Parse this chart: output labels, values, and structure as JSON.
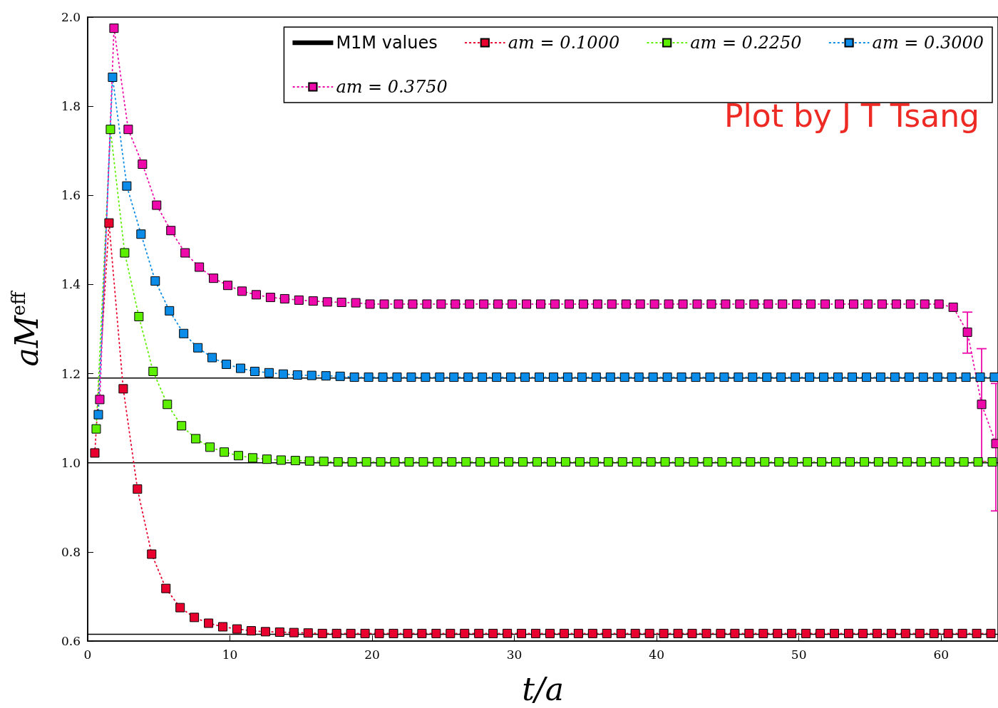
{
  "chart_data": {
    "type": "line",
    "xlabel": "t/a",
    "ylabel": "aM$^{eff}$",
    "xlim": [
      0,
      64
    ],
    "xticks": [
      0,
      10,
      20,
      30,
      40,
      50,
      60
    ],
    "ylim": [
      0.6,
      2.0
    ],
    "yticks": [
      {
        "value": 0.6,
        "label": "0.6"
      },
      {
        "value": 0.8,
        "label": "0.8"
      },
      {
        "value": 1.0,
        "label": "1.0"
      },
      {
        "value": 1.2,
        "label": "1.2"
      },
      {
        "value": 1.4,
        "label": "1.4"
      },
      {
        "value": 1.6,
        "label": "1.6"
      },
      {
        "value": 1.8,
        "label": "1.8"
      },
      {
        "value": 2.0,
        "label": "2.0"
      }
    ],
    "grid": false,
    "legend": "top right",
    "marker": "square",
    "line_style": "dotted",
    "annotations": [
      "Plot by J T Tsang"
    ],
    "series": [
      {
        "name": "M1M values",
        "color": "#000000",
        "marker": "none",
        "line_style": "solid",
        "x": [
          0,
          64
        ],
        "values": [
          0.615,
          0.615
        ]
      },
      {
        "color": "#000000",
        "marker": "none",
        "line_style": "solid",
        "x": [
          0,
          64
        ],
        "values": [
          1.0,
          1.0
        ]
      },
      {
        "color": "#000000",
        "marker": "none",
        "line_style": "solid",
        "x": [
          0,
          64
        ],
        "values": [
          1.19,
          1.19
        ]
      },
      {
        "name": "am = 0.1000",
        "color": "#e8002e",
        "x": [
          0.5,
          1.5,
          2.5,
          3.5,
          4.5,
          5.5,
          6.5,
          7.5,
          8.5,
          9.5,
          10.5,
          11.5,
          12.5,
          13.5,
          14.5,
          15.5,
          16.5,
          17.5,
          18.5,
          19.5,
          20.5,
          21.5,
          22.5,
          23.5,
          24.5,
          25.5,
          26.5,
          27.5,
          28.5,
          29.5,
          30.5,
          31.5,
          32.5,
          33.5,
          34.5,
          35.5,
          36.5,
          37.5,
          38.5,
          39.5,
          40.5,
          41.5,
          42.5,
          43.5,
          44.5,
          45.5,
          46.5,
          47.5,
          48.5,
          49.5,
          50.5,
          51.5,
          52.5,
          53.5,
          54.5,
          55.5,
          56.5,
          57.5,
          58.5,
          59.5,
          60.5,
          61.5,
          62.5,
          63.5
        ],
        "values": [
          1.022,
          1.538,
          1.166,
          0.941,
          0.795,
          0.718,
          0.675,
          0.653,
          0.64,
          0.632,
          0.627,
          0.623,
          0.621,
          0.62,
          0.619,
          0.618,
          0.617,
          0.617,
          0.617,
          0.617,
          0.617,
          0.617,
          0.617,
          0.617,
          0.617,
          0.617,
          0.617,
          0.617,
          0.617,
          0.617,
          0.617,
          0.617,
          0.617,
          0.617,
          0.617,
          0.617,
          0.617,
          0.617,
          0.617,
          0.617,
          0.617,
          0.617,
          0.617,
          0.617,
          0.617,
          0.617,
          0.617,
          0.617,
          0.617,
          0.617,
          0.617,
          0.617,
          0.617,
          0.617,
          0.617,
          0.617,
          0.617,
          0.617,
          0.617,
          0.617,
          0.617,
          0.617,
          0.617,
          0.617
        ]
      },
      {
        "name": "am = 0.2250",
        "color": "#5cf000",
        "x": [
          0.6,
          1.6,
          2.6,
          3.6,
          4.6,
          5.6,
          6.6,
          7.6,
          8.6,
          9.6,
          10.6,
          11.6,
          12.6,
          13.6,
          14.6,
          15.6,
          16.6,
          17.6,
          18.6,
          19.6,
          20.6,
          21.6,
          22.6,
          23.6,
          24.6,
          25.6,
          26.6,
          27.6,
          28.6,
          29.6,
          30.6,
          31.6,
          32.6,
          33.6,
          34.6,
          35.6,
          36.6,
          37.6,
          38.6,
          39.6,
          40.6,
          41.6,
          42.6,
          43.6,
          44.6,
          45.6,
          46.6,
          47.6,
          48.6,
          49.6,
          50.6,
          51.6,
          52.6,
          53.6,
          54.6,
          55.6,
          56.6,
          57.6,
          58.6,
          59.6,
          60.6,
          61.6,
          62.6,
          63.6
        ],
        "values": [
          1.076,
          1.748,
          1.471,
          1.328,
          1.205,
          1.131,
          1.083,
          1.054,
          1.035,
          1.024,
          1.016,
          1.011,
          1.008,
          1.006,
          1.005,
          1.004,
          1.003,
          1.002,
          1.002,
          1.002,
          1.002,
          1.002,
          1.002,
          1.002,
          1.002,
          1.002,
          1.002,
          1.002,
          1.002,
          1.002,
          1.002,
          1.002,
          1.002,
          1.002,
          1.002,
          1.002,
          1.002,
          1.002,
          1.002,
          1.002,
          1.002,
          1.002,
          1.002,
          1.002,
          1.002,
          1.002,
          1.002,
          1.002,
          1.002,
          1.002,
          1.002,
          1.002,
          1.002,
          1.002,
          1.002,
          1.002,
          1.002,
          1.002,
          1.002,
          1.002,
          1.002,
          1.002,
          1.002,
          1.002
        ]
      },
      {
        "name": "am = 0.3000",
        "color": "#0a8ce8",
        "x": [
          0.75,
          1.75,
          2.75,
          3.75,
          4.75,
          5.75,
          6.75,
          7.75,
          8.75,
          9.75,
          10.75,
          11.75,
          12.75,
          13.75,
          14.75,
          15.75,
          16.75,
          17.75,
          18.75,
          19.75,
          20.75,
          21.75,
          22.75,
          23.75,
          24.75,
          25.75,
          26.75,
          27.75,
          28.75,
          29.75,
          30.75,
          31.75,
          32.75,
          33.75,
          34.75,
          35.75,
          36.75,
          37.75,
          38.75,
          39.75,
          40.75,
          41.75,
          42.75,
          43.75,
          44.75,
          45.75,
          46.75,
          47.75,
          48.75,
          49.75,
          50.75,
          51.75,
          52.75,
          53.75,
          54.75,
          55.75,
          56.75,
          57.75,
          58.75,
          59.75,
          60.75,
          61.75,
          62.75,
          63.75
        ],
        "values": [
          1.108,
          1.865,
          1.621,
          1.513,
          1.408,
          1.341,
          1.29,
          1.258,
          1.236,
          1.221,
          1.212,
          1.205,
          1.202,
          1.199,
          1.197,
          1.196,
          1.195,
          1.194,
          1.192,
          1.192,
          1.192,
          1.192,
          1.192,
          1.192,
          1.192,
          1.192,
          1.192,
          1.192,
          1.192,
          1.192,
          1.192,
          1.192,
          1.192,
          1.192,
          1.192,
          1.192,
          1.192,
          1.192,
          1.192,
          1.192,
          1.192,
          1.192,
          1.192,
          1.192,
          1.192,
          1.192,
          1.192,
          1.192,
          1.192,
          1.192,
          1.192,
          1.192,
          1.192,
          1.192,
          1.192,
          1.192,
          1.192,
          1.192,
          1.192,
          1.192,
          1.192,
          1.192,
          1.192,
          1.192
        ]
      },
      {
        "name": "am = 0.3750",
        "color": "#ee0aaa",
        "x": [
          0.85,
          1.85,
          2.85,
          3.85,
          4.85,
          5.85,
          6.85,
          7.85,
          8.85,
          9.85,
          10.85,
          11.85,
          12.85,
          13.85,
          14.85,
          15.85,
          16.85,
          17.85,
          18.85,
          19.85,
          20.85,
          21.85,
          22.85,
          23.85,
          24.85,
          25.85,
          26.85,
          27.85,
          28.85,
          29.85,
          30.85,
          31.85,
          32.85,
          33.85,
          34.85,
          35.85,
          36.85,
          37.85,
          38.85,
          39.85,
          40.85,
          41.85,
          42.85,
          43.85,
          44.85,
          45.85,
          46.85,
          47.85,
          48.85,
          49.85,
          50.85,
          51.85,
          52.85,
          53.85,
          54.85,
          55.85,
          56.85,
          57.85,
          58.85,
          59.85,
          60.85,
          61.85,
          62.85,
          63.85
        ],
        "values": [
          1.142,
          1.975,
          1.748,
          1.67,
          1.578,
          1.521,
          1.471,
          1.439,
          1.414,
          1.398,
          1.385,
          1.377,
          1.371,
          1.368,
          1.365,
          1.363,
          1.361,
          1.36,
          1.359,
          1.356,
          1.356,
          1.356,
          1.356,
          1.356,
          1.356,
          1.356,
          1.356,
          1.356,
          1.356,
          1.356,
          1.356,
          1.356,
          1.356,
          1.356,
          1.356,
          1.356,
          1.356,
          1.356,
          1.356,
          1.356,
          1.356,
          1.356,
          1.356,
          1.356,
          1.356,
          1.356,
          1.356,
          1.356,
          1.356,
          1.356,
          1.356,
          1.356,
          1.356,
          1.356,
          1.356,
          1.356,
          1.356,
          1.356,
          1.356,
          1.356,
          1.349,
          1.293,
          1.131,
          1.043
        ],
        "errors": [
          null,
          null,
          null,
          null,
          null,
          null,
          null,
          null,
          null,
          null,
          null,
          null,
          null,
          null,
          null,
          null,
          null,
          null,
          null,
          null,
          null,
          null,
          null,
          null,
          null,
          null,
          null,
          null,
          null,
          null,
          null,
          null,
          null,
          null,
          null,
          null,
          null,
          null,
          null,
          null,
          null,
          null,
          null,
          null,
          null,
          null,
          null,
          null,
          null,
          null,
          null,
          null,
          null,
          null,
          null,
          null,
          null,
          null,
          null,
          null,
          null,
          [
            1.246,
            1.338
          ],
          [
            1.003,
            1.256
          ],
          [
            0.892,
            1.178
          ]
        ]
      }
    ]
  }
}
